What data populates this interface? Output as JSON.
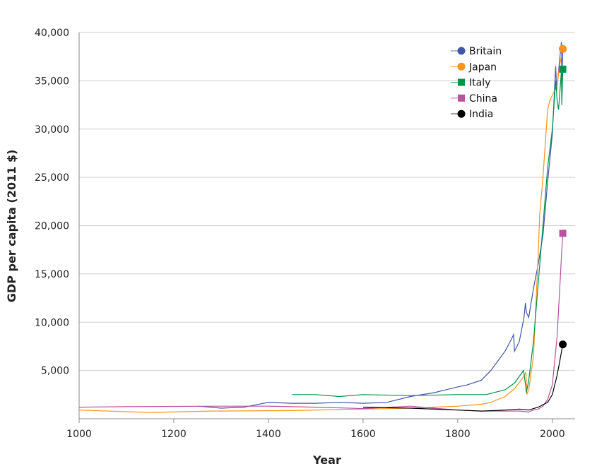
{
  "chart_data": {
    "type": "line",
    "xlabel": "Year",
    "ylabel": "GDP per capita (2011 $)",
    "xlim": [
      1000,
      2048
    ],
    "ylim": [
      0,
      40000
    ],
    "xticks": [
      1000,
      1200,
      1400,
      1600,
      1800,
      2000
    ],
    "xtick_labels": [
      "1000",
      "1200",
      "1400",
      "1600",
      "1800",
      "2000"
    ],
    "yticks": [
      5000,
      10000,
      15000,
      20000,
      25000,
      30000,
      35000,
      40000
    ],
    "ytick_labels": [
      "5,000",
      "10,000",
      "15,000",
      "20,000",
      "25,000",
      "30,000",
      "35,000",
      "40,000"
    ],
    "grid": "horizontal",
    "legend_position": "top-right",
    "series": [
      {
        "name": "Britain",
        "color": "#3f56a6",
        "marker": "circle",
        "x": [
          1252,
          1300,
          1348,
          1400,
          1450,
          1500,
          1550,
          1600,
          1650,
          1700,
          1750,
          1800,
          1820,
          1850,
          1870,
          1900,
          1913,
          1918,
          1920,
          1930,
          1940,
          1943,
          1945,
          1950,
          1960,
          1970,
          1980,
          1990,
          2000,
          2007,
          2009,
          2015,
          2019,
          2020,
          2022
        ],
        "y": [
          1300,
          1100,
          1200,
          1700,
          1600,
          1600,
          1700,
          1600,
          1700,
          2300,
          2700,
          3300,
          3500,
          4000,
          5000,
          7000,
          8200,
          8700,
          7000,
          8000,
          10500,
          12000,
          11000,
          10500,
          13500,
          16000,
          19000,
          24500,
          29500,
          36500,
          34000,
          37000,
          39000,
          35000,
          38300
        ]
      },
      {
        "name": "Japan",
        "color": "#f7941d",
        "marker": "circle",
        "x": [
          1000,
          1150,
          1280,
          1450,
          1600,
          1700,
          1800,
          1850,
          1870,
          1900,
          1920,
          1940,
          1944,
          1946,
          1950,
          1960,
          1970,
          1973,
          1980,
          1990,
          1995,
          2000,
          2010,
          2015,
          2022
        ],
        "y": [
          900,
          650,
          800,
          850,
          1000,
          1100,
          1300,
          1500,
          1700,
          2300,
          3100,
          4400,
          4800,
          2500,
          3000,
          6500,
          17000,
          21000,
          25000,
          32000,
          33000,
          33500,
          34500,
          36500,
          38300
        ]
      },
      {
        "name": "Italy",
        "color": "#00934a",
        "marker": "square",
        "x": [
          1450,
          1500,
          1550,
          1600,
          1700,
          1800,
          1860,
          1900,
          1920,
          1939,
          1944,
          1945,
          1950,
          1960,
          1970,
          1980,
          1990,
          2000,
          2007,
          2010,
          2013,
          2019,
          2020,
          2022
        ],
        "y": [
          2500,
          2500,
          2300,
          2500,
          2400,
          2500,
          2500,
          3000,
          3700,
          5000,
          3300,
          2700,
          4000,
          8000,
          14000,
          20000,
          26000,
          30000,
          35000,
          33000,
          32000,
          36000,
          32500,
          36200
        ]
      },
      {
        "name": "China",
        "color": "#b9519f",
        "marker": "square",
        "x": [
          1000,
          1100,
          1300,
          1400,
          1500,
          1600,
          1700,
          1750,
          1800,
          1850,
          1900,
          1930,
          1950,
          1960,
          1970,
          1980,
          1990,
          2000,
          2010,
          2015,
          2020,
          2022
        ],
        "y": [
          1200,
          1250,
          1300,
          1300,
          1200,
          1050,
          1300,
          1100,
          900,
          800,
          800,
          800,
          700,
          900,
          1000,
          1300,
          2000,
          3500,
          8500,
          13000,
          17500,
          19200
        ]
      },
      {
        "name": "India",
        "color": "#000000",
        "marker": "circle",
        "x": [
          1600,
          1700,
          1800,
          1850,
          1900,
          1930,
          1950,
          1970,
          1990,
          2000,
          2010,
          2015,
          2022
        ],
        "y": [
          1200,
          1100,
          900,
          800,
          900,
          1000,
          900,
          1200,
          1700,
          2500,
          4500,
          5800,
          7700
        ]
      }
    ]
  }
}
